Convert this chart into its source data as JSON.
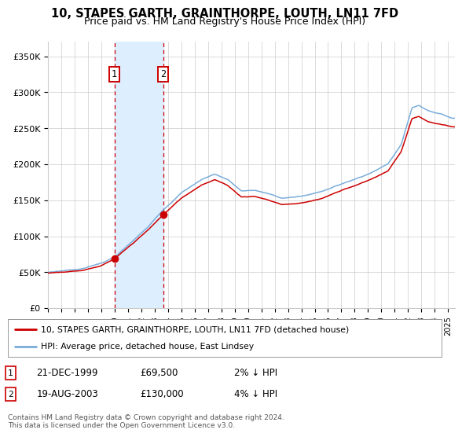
{
  "title": "10, STAPES GARTH, GRAINTHORPE, LOUTH, LN11 7FD",
  "subtitle": "Price paid vs. HM Land Registry's House Price Index (HPI)",
  "legend_line1": "10, STAPES GARTH, GRAINTHORPE, LOUTH, LN11 7FD (detached house)",
  "legend_line2": "HPI: Average price, detached house, East Lindsey",
  "footnote": "Contains HM Land Registry data © Crown copyright and database right 2024.\nThis data is licensed under the Open Government Licence v3.0.",
  "sale1_date": "21-DEC-1999",
  "sale1_price_str": "£69,500",
  "sale1_hpi": "2% ↓ HPI",
  "sale1_year": 1999.97,
  "sale1_price": 69500,
  "sale2_date": "19-AUG-2003",
  "sale2_price_str": "£130,000",
  "sale2_hpi": "4% ↓ HPI",
  "sale2_year": 2003.63,
  "sale2_price": 130000,
  "ylim": [
    0,
    370000
  ],
  "xlim_start": 1995.0,
  "xlim_end": 2025.5,
  "yticks": [
    0,
    50000,
    100000,
    150000,
    200000,
    250000,
    300000,
    350000
  ],
  "ytick_labels": [
    "£0",
    "£50K",
    "£100K",
    "£150K",
    "£200K",
    "£250K",
    "£300K",
    "£350K"
  ],
  "xticks": [
    1995,
    1996,
    1997,
    1998,
    1999,
    2000,
    2001,
    2002,
    2003,
    2004,
    2005,
    2006,
    2007,
    2008,
    2009,
    2010,
    2011,
    2012,
    2013,
    2014,
    2015,
    2016,
    2017,
    2018,
    2019,
    2020,
    2021,
    2022,
    2023,
    2024,
    2025
  ],
  "red_color": "#cc0000",
  "blue_color": "#7aaddb",
  "shade_color": "#ddeeff",
  "box_color": "#cc0000",
  "grid_color": "#cccccc",
  "background_color": "#ffffff",
  "title_fontsize": 10.5,
  "subtitle_fontsize": 9
}
